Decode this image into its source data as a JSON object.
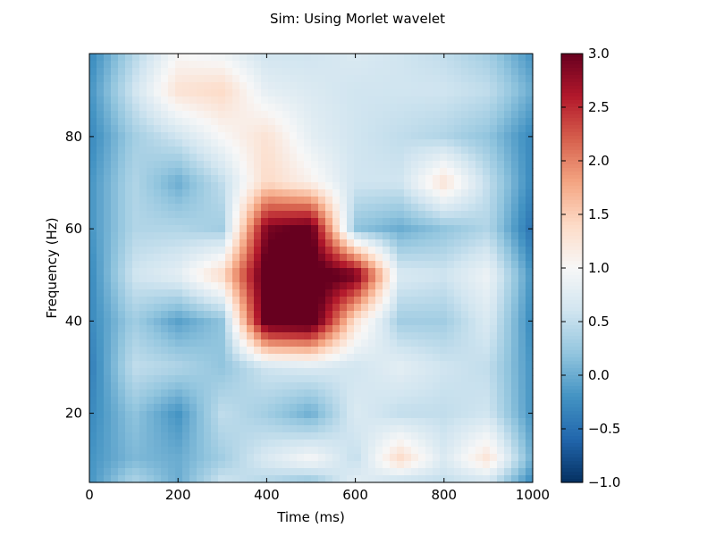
{
  "chart_data": {
    "type": "heatmap",
    "title": "Sim: Using Morlet wavelet",
    "xlabel": "Time (ms)",
    "ylabel": "Frequency (Hz)",
    "xlim": [
      0,
      1000
    ],
    "ylim": [
      5,
      98
    ],
    "x_ticks": [
      0,
      200,
      400,
      600,
      800,
      1000
    ],
    "y_ticks": [
      20,
      40,
      60,
      80
    ],
    "colorbar": {
      "range": [
        -1.0,
        3.0
      ],
      "ticks": [
        "3.0",
        "2.5",
        "2.0",
        "1.5",
        "1.0",
        "0.5",
        "0.0",
        "−0.5",
        "−1.0"
      ],
      "colormap": "RdBu_r"
    },
    "x_grid": [
      0,
      100,
      200,
      300,
      400,
      500,
      600,
      700,
      800,
      900,
      1000
    ],
    "y_grid": [
      98,
      90,
      80,
      70,
      60,
      50,
      40,
      30,
      20,
      10,
      5
    ],
    "z": [
      [
        -0.3,
        0.4,
        1.0,
        0.9,
        0.6,
        0.6,
        0.7,
        0.6,
        0.5,
        0.3,
        -0.2
      ],
      [
        -0.2,
        0.6,
        1.3,
        1.4,
        0.8,
        0.7,
        0.6,
        0.6,
        0.6,
        0.5,
        0.0
      ],
      [
        -0.3,
        0.3,
        0.6,
        1.0,
        1.3,
        0.8,
        0.6,
        0.5,
        0.4,
        0.2,
        -0.3
      ],
      [
        -0.2,
        0.4,
        0.0,
        0.5,
        1.4,
        1.1,
        0.6,
        0.6,
        1.3,
        0.5,
        -0.3
      ],
      [
        -0.2,
        0.4,
        0.4,
        0.3,
        2.9,
        3.1,
        0.2,
        0.0,
        0.2,
        0.4,
        -0.5
      ],
      [
        -0.3,
        0.6,
        0.8,
        1.4,
        3.2,
        3.2,
        3.0,
        0.7,
        0.6,
        0.9,
        -0.2
      ],
      [
        -0.3,
        0.3,
        -0.1,
        0.2,
        3.2,
        3.3,
        1.3,
        0.3,
        0.3,
        0.7,
        -0.3
      ],
      [
        -0.4,
        0.5,
        0.4,
        0.2,
        0.6,
        0.7,
        0.6,
        0.8,
        0.6,
        0.5,
        -0.2
      ],
      [
        -0.3,
        0.2,
        -0.2,
        0.5,
        0.3,
        0.0,
        0.7,
        0.5,
        0.5,
        0.6,
        -0.2
      ],
      [
        -0.2,
        0.1,
        0.0,
        0.3,
        0.7,
        1.0,
        0.5,
        1.4,
        0.7,
        1.3,
        0.0
      ],
      [
        -0.2,
        0.4,
        0.0,
        0.6,
        0.4,
        0.2,
        0.8,
        0.5,
        0.5,
        0.6,
        -0.3
      ]
    ]
  }
}
